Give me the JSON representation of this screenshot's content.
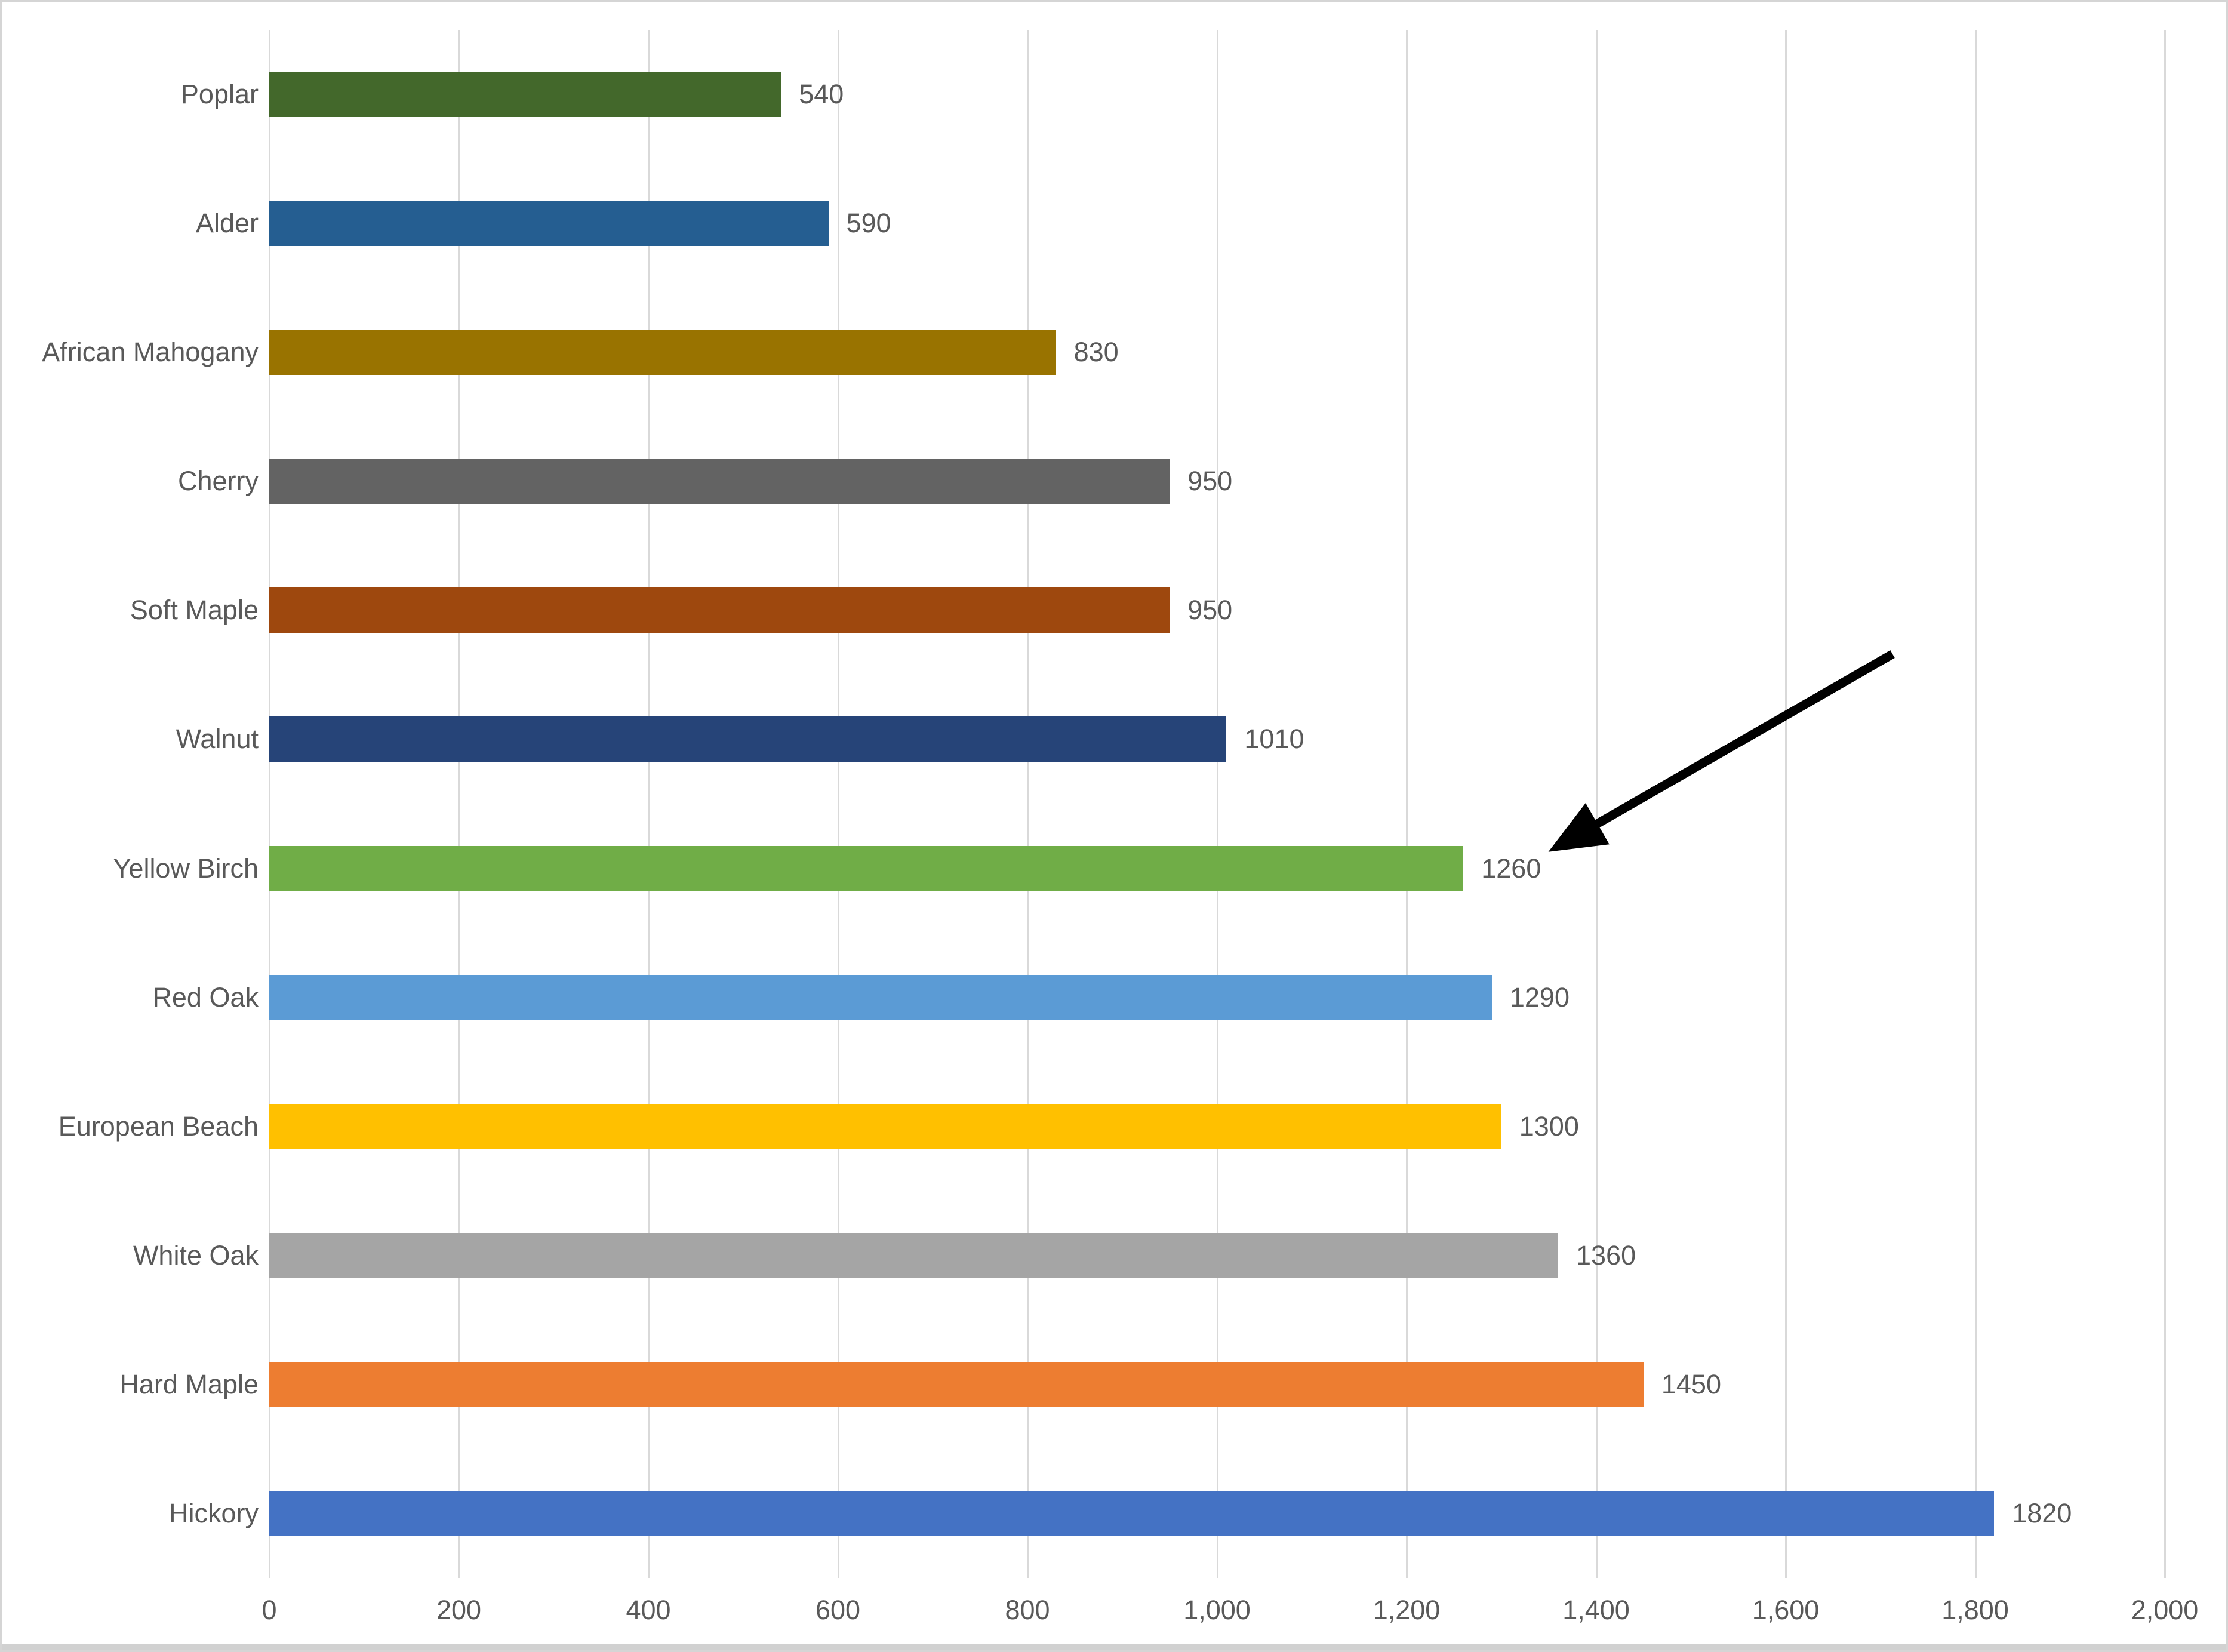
{
  "chart_data": {
    "type": "bar",
    "orientation": "horizontal",
    "title": "",
    "xlabel": "",
    "ylabel": "",
    "categories": [
      "Poplar",
      "Alder",
      "African Mahogany",
      "Cherry",
      "Soft Maple",
      "Walnut",
      "Yellow Birch",
      "Red Oak",
      "European Beach",
      "White Oak",
      "Hard Maple",
      "Hickory"
    ],
    "values": [
      540,
      590,
      830,
      950,
      950,
      1010,
      1260,
      1290,
      1300,
      1360,
      1450,
      1820
    ],
    "data_labels": [
      "540",
      "590",
      "830",
      "950",
      "950",
      "1010",
      "1260",
      "1290",
      "1300",
      "1360",
      "1450",
      "1820"
    ],
    "bar_colors": [
      "#43682B",
      "#255E91",
      "#997300",
      "#636363",
      "#9E480E",
      "#264478",
      "#70AD47",
      "#5B9BD5",
      "#FFC000",
      "#A5A5A5",
      "#ED7D31",
      "#4472C4"
    ],
    "xlim": [
      0,
      2000
    ],
    "x_ticks": [
      {
        "value": 0,
        "label": "0"
      },
      {
        "value": 200,
        "label": "200"
      },
      {
        "value": 400,
        "label": "400"
      },
      {
        "value": 600,
        "label": "600"
      },
      {
        "value": 800,
        "label": "800"
      },
      {
        "value": 1000,
        "label": "1,000"
      },
      {
        "value": 1200,
        "label": "1,200"
      },
      {
        "value": 1400,
        "label": "1,400"
      },
      {
        "value": 1600,
        "label": "1,600"
      },
      {
        "value": 1800,
        "label": "1,800"
      },
      {
        "value": 2000,
        "label": "2,000"
      }
    ],
    "grid": "vertical-gridlines-only",
    "legend": "none",
    "annotation": {
      "type": "arrow",
      "points_to": "Yellow Birch 1260",
      "color": "#000000",
      "tail_frac": {
        "x": 0.8502,
        "y": 0.3957
      },
      "tip_frac": {
        "x": 0.6954,
        "y": 0.5157
      }
    }
  },
  "style": {
    "background": "#FFFFFF",
    "border_color": "#D5D5D5",
    "gridline_color": "#D9D9D9",
    "label_color": "#595959"
  }
}
